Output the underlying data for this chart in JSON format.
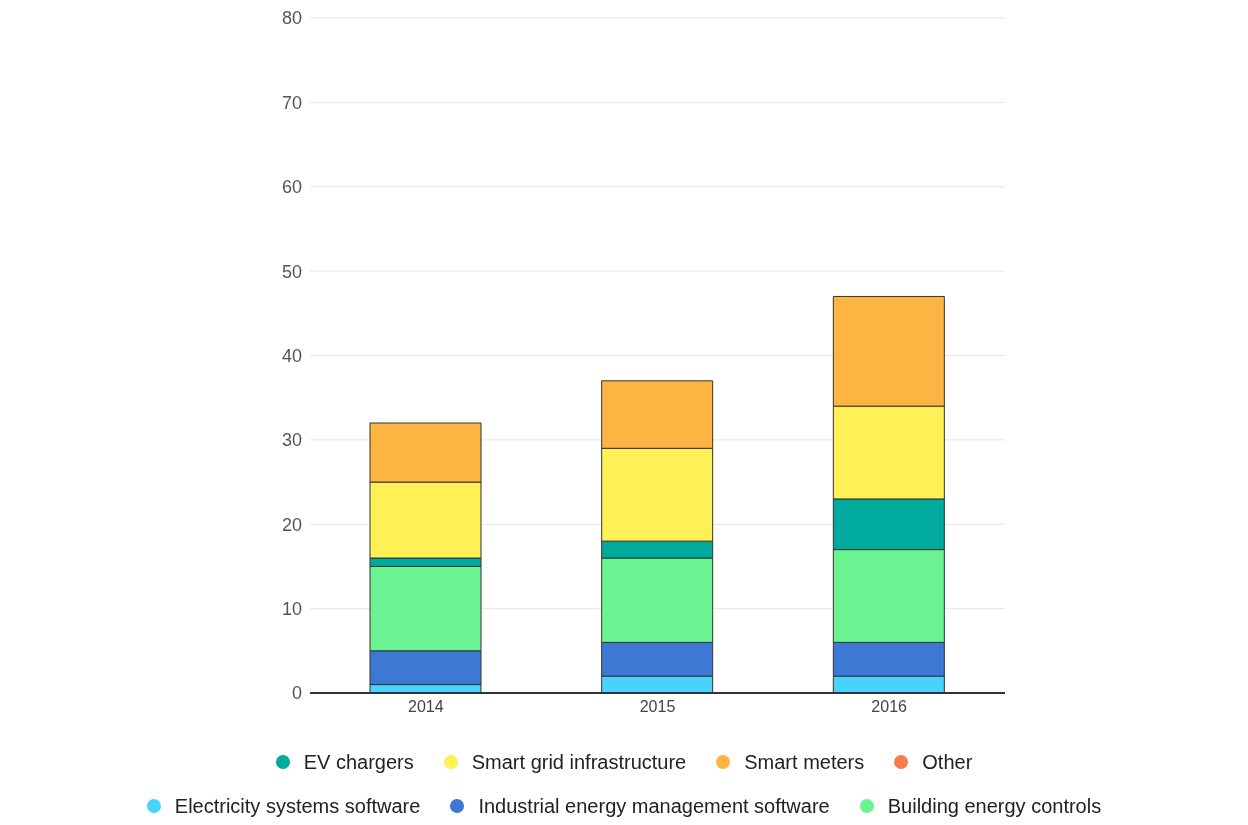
{
  "chart_data": {
    "type": "bar",
    "stacked": true,
    "categories": [
      "2014",
      "2015",
      "2016"
    ],
    "series": [
      {
        "name": "Electricity systems software",
        "color": "#48d3fc",
        "values": [
          1,
          2,
          2
        ]
      },
      {
        "name": "Industrial energy management software",
        "color": "#3c78d4",
        "values": [
          4,
          4,
          4
        ]
      },
      {
        "name": "Building energy controls",
        "color": "#6af390",
        "values": [
          10,
          10,
          11
        ]
      },
      {
        "name": "EV chargers",
        "color": "#00aa9c",
        "values": [
          1,
          2,
          6
        ]
      },
      {
        "name": "Smart grid infrastructure",
        "color": "#fef055",
        "values": [
          9,
          11,
          11
        ]
      },
      {
        "name": "Smart meters",
        "color": "#fdb443",
        "values": [
          7,
          8,
          13
        ]
      },
      {
        "name": "Other",
        "color": "#fc7b4a",
        "values": [
          0,
          0,
          0
        ]
      }
    ],
    "ylim": [
      0,
      80
    ],
    "yticks": [
      0,
      10,
      20,
      30,
      40,
      50,
      60,
      70,
      80
    ],
    "grid": "y",
    "legend": "bottom"
  }
}
